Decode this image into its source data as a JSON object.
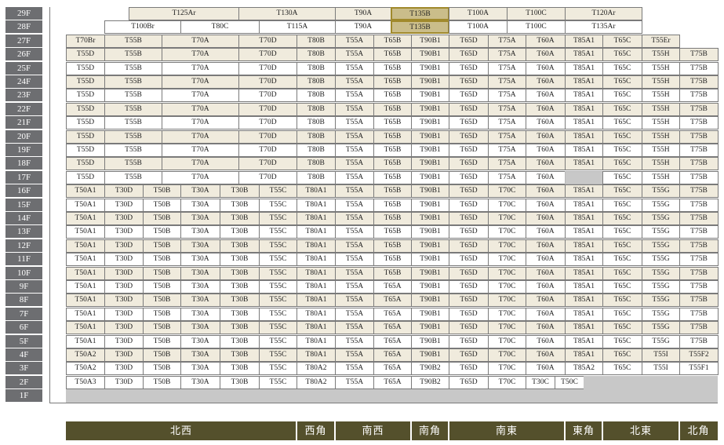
{
  "colors": {
    "floor_label_bg": "#6d6e71",
    "unit_fill": "#f0ebdd",
    "unit_fill_white": "#ffffff",
    "selected_fill": "#cabd8a",
    "selected_border": "#a0892c",
    "unavailable_gray": "#c8c8c8",
    "direction_bar": "#54502c"
  },
  "selected_unit": "T135B",
  "floors": [
    "29F",
    "28F",
    "27F",
    "26F",
    "25F",
    "24F",
    "23F",
    "22F",
    "21F",
    "20F",
    "19F",
    "18F",
    "17F",
    "16F",
    "15F",
    "14F",
    "13F",
    "12F",
    "11F",
    "10F",
    "9F",
    "8F",
    "7F",
    "6F",
    "5F",
    "4F",
    "3F",
    "2F",
    "1F"
  ],
  "rows": {
    "29F": [
      "T125Ar",
      "T130A",
      "T90A",
      "T135B",
      "T100A",
      "T100C",
      "T120Ar"
    ],
    "28F": [
      "T100Br",
      "T80C",
      "T115A",
      "T90A",
      "T135B",
      "T100A",
      "T100C",
      "T135Ar"
    ],
    "27F": [
      "T70Br",
      "T55B",
      "T70A",
      "T70D",
      "T80B",
      "T55A",
      "T65B",
      "T90B1",
      "T65D",
      "T75A",
      "T60A",
      "T85A1",
      "T65C",
      "T55Er"
    ],
    "upper": {
      "26F": [
        "T55D",
        "T55B",
        "T70A",
        "T70D",
        "T80B",
        "T55A",
        "T65B",
        "T90B1",
        "T65D",
        "T75A",
        "T60A",
        "T85A1",
        "T65C",
        "T55H",
        "T75B"
      ],
      "25F": [
        "T55D",
        "T55B",
        "T70A",
        "T70D",
        "T80B",
        "T55A",
        "T65B",
        "T90B1",
        "T65D",
        "T75A",
        "T60A",
        "T85A1",
        "T65C",
        "T55H",
        "T75B"
      ],
      "24F": [
        "T55D",
        "T55B",
        "T70A",
        "T70D",
        "T80B",
        "T55A",
        "T65B",
        "T90B1",
        "T65D",
        "T75A",
        "T60A",
        "T85A1",
        "T65C",
        "T55H",
        "T75B"
      ],
      "23F": [
        "T55D",
        "T55B",
        "T70A",
        "T70D",
        "T80B",
        "T55A",
        "T65B",
        "T90B1",
        "T65D",
        "T75A",
        "T60A",
        "T85A1",
        "T65C",
        "T55H",
        "T75B"
      ],
      "22F": [
        "T55D",
        "T55B",
        "T70A",
        "T70D",
        "T80B",
        "T55A",
        "T65B",
        "T90B1",
        "T65D",
        "T75A",
        "T60A",
        "T85A1",
        "T65C",
        "T55H",
        "T75B"
      ],
      "21F": [
        "T55D",
        "T55B",
        "T70A",
        "T70D",
        "T80B",
        "T55A",
        "T65B",
        "T90B1",
        "T65D",
        "T75A",
        "T60A",
        "T85A1",
        "T65C",
        "T55H",
        "T75B"
      ],
      "20F": [
        "T55D",
        "T55B",
        "T70A",
        "T70D",
        "T80B",
        "T55A",
        "T65B",
        "T90B1",
        "T65D",
        "T75A",
        "T60A",
        "T85A1",
        "T65C",
        "T55H",
        "T75B"
      ],
      "19F": [
        "T55D",
        "T55B",
        "T70A",
        "T70D",
        "T80B",
        "T55A",
        "T65B",
        "T90B1",
        "T65D",
        "T75A",
        "T60A",
        "T85A1",
        "T65C",
        "T55H",
        "T75B"
      ],
      "18F": [
        "T55D",
        "T55B",
        "T70A",
        "T70D",
        "T80B",
        "T55A",
        "T65B",
        "T90B1",
        "T65D",
        "T75A",
        "T60A",
        "T85A1",
        "T65C",
        "T55H",
        "T75B"
      ],
      "17F": [
        "T55D",
        "T55B",
        "T70A",
        "T70D",
        "T80B",
        "T55A",
        "T65B",
        "T90B1",
        "T65D",
        "T75A",
        "T60A",
        "",
        "T65C",
        "T55H",
        "T75B"
      ]
    },
    "lower": {
      "16F": [
        "T50A1",
        "T30D",
        "T50B",
        "T30A",
        "T30B",
        "T55C",
        "T80A1",
        "T55A",
        "T65B",
        "T90B1",
        "T65D",
        "T70C",
        "T60A",
        "T85A1",
        "T65C",
        "T55G",
        "T75B"
      ],
      "15F": [
        "T50A1",
        "T30D",
        "T50B",
        "T30A",
        "T30B",
        "T55C",
        "T80A1",
        "T55A",
        "T65B",
        "T90B1",
        "T65D",
        "T70C",
        "T60A",
        "T85A1",
        "T65C",
        "T55G",
        "T75B"
      ],
      "14F": [
        "T50A1",
        "T30D",
        "T50B",
        "T30A",
        "T30B",
        "T55C",
        "T80A1",
        "T55A",
        "T65B",
        "T90B1",
        "T65D",
        "T70C",
        "T60A",
        "T85A1",
        "T65C",
        "T55G",
        "T75B"
      ],
      "13F": [
        "T50A1",
        "T30D",
        "T50B",
        "T30A",
        "T30B",
        "T55C",
        "T80A1",
        "T55A",
        "T65B",
        "T90B1",
        "T65D",
        "T70C",
        "T60A",
        "T85A1",
        "T65C",
        "T55G",
        "T75B"
      ],
      "12F": [
        "T50A1",
        "T30D",
        "T50B",
        "T30A",
        "T30B",
        "T55C",
        "T80A1",
        "T55A",
        "T65B",
        "T90B1",
        "T65D",
        "T70C",
        "T60A",
        "T85A1",
        "T65C",
        "T55G",
        "T75B"
      ],
      "11F": [
        "T50A1",
        "T30D",
        "T50B",
        "T30A",
        "T30B",
        "T55C",
        "T80A1",
        "T55A",
        "T65B",
        "T90B1",
        "T65D",
        "T70C",
        "T60A",
        "T85A1",
        "T65C",
        "T55G",
        "T75B"
      ],
      "10F": [
        "T50A1",
        "T30D",
        "T50B",
        "T30A",
        "T30B",
        "T55C",
        "T80A1",
        "T55A",
        "T65B",
        "T90B1",
        "T65D",
        "T70C",
        "T60A",
        "T85A1",
        "T65C",
        "T55G",
        "T75B"
      ],
      "9F": [
        "T50A1",
        "T30D",
        "T50B",
        "T30A",
        "T30B",
        "T55C",
        "T80A1",
        "T55A",
        "T65A",
        "T90B1",
        "T65D",
        "T70C",
        "T60A",
        "T85A1",
        "T65C",
        "T55G",
        "T75B"
      ],
      "8F": [
        "T50A1",
        "T30D",
        "T50B",
        "T30A",
        "T30B",
        "T55C",
        "T80A1",
        "T55A",
        "T65A",
        "T90B1",
        "T65D",
        "T70C",
        "T60A",
        "T85A1",
        "T65C",
        "T55G",
        "T75B"
      ],
      "7F": [
        "T50A1",
        "T30D",
        "T50B",
        "T30A",
        "T30B",
        "T55C",
        "T80A1",
        "T55A",
        "T65A",
        "T90B1",
        "T65D",
        "T70C",
        "T60A",
        "T85A1",
        "T65C",
        "T55G",
        "T75B"
      ],
      "6F": [
        "T50A1",
        "T30D",
        "T50B",
        "T30A",
        "T30B",
        "T55C",
        "T80A1",
        "T55A",
        "T65A",
        "T90B1",
        "T65D",
        "T70C",
        "T60A",
        "T85A1",
        "T65C",
        "T55G",
        "T75B"
      ],
      "5F": [
        "T50A1",
        "T30D",
        "T50B",
        "T30A",
        "T30B",
        "T55C",
        "T80A1",
        "T55A",
        "T65A",
        "T90B1",
        "T65D",
        "T70C",
        "T60A",
        "T85A1",
        "T65C",
        "T55G",
        "T75B"
      ],
      "4F": [
        "T50A2",
        "T30D",
        "T50B",
        "T30A",
        "T30B",
        "T55C",
        "T80A1",
        "T55A",
        "T65A",
        "T90B1",
        "T65D",
        "T70C",
        "T60A",
        "T85A1",
        "T65C",
        "T55I",
        "T55F2"
      ],
      "3F": [
        "T50A2",
        "T30D",
        "T50B",
        "T30A",
        "T30B",
        "T55C",
        "T80A2",
        "T55A",
        "T65A",
        "T90B2",
        "T65D",
        "T70C",
        "T60A",
        "T85A2",
        "T65C",
        "T55I",
        "T55F1"
      ]
    },
    "2F": [
      "T50A3",
      "T30D",
      "T50B",
      "T30A",
      "T30B",
      "T55C",
      "T80A2",
      "T55A",
      "T65A",
      "T90B2",
      "T65D",
      "T70C",
      "T30C",
      "T50C"
    ],
    "1F": []
  },
  "directions": [
    "北西",
    "西角",
    "南西",
    "南角",
    "南東",
    "東角",
    "北東",
    "北角"
  ]
}
